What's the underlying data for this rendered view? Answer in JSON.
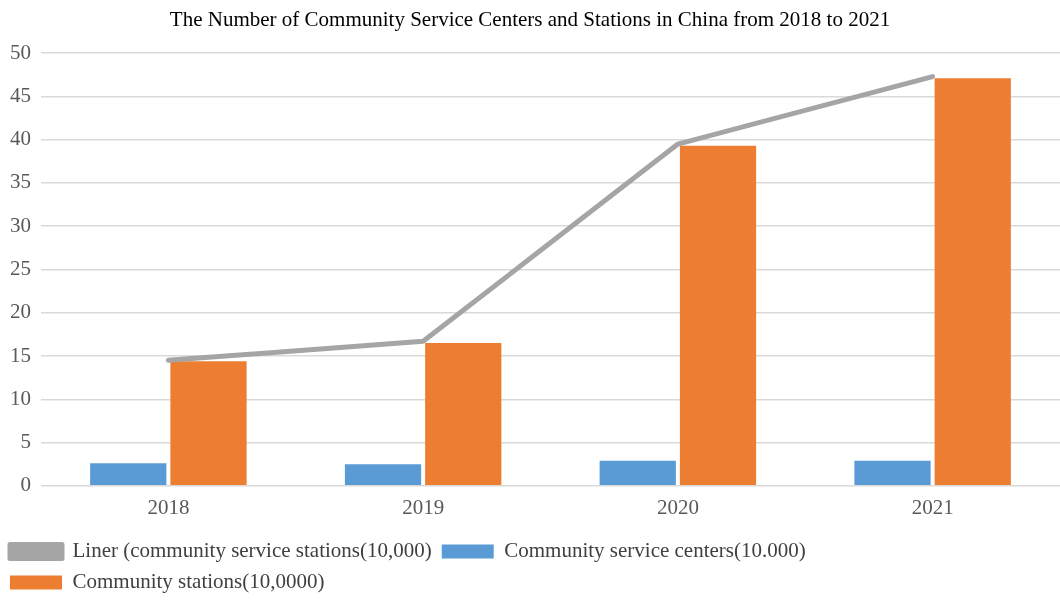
{
  "chart_data": {
    "type": "bar",
    "title": "The Number of Community Service Centers and Stations in China from 2018 to 2021",
    "categories": [
      "2018",
      "2019",
      "2020",
      "2021"
    ],
    "series": [
      {
        "name": "Community service centers(10.000)",
        "color": "#5b9bd5",
        "values": [
          2.6,
          2.5,
          2.9,
          2.9
        ]
      },
      {
        "name": "Community stations(10,0000)",
        "color": "#ed7d31",
        "values": [
          14.4,
          16.5,
          39.3,
          47.1
        ]
      },
      {
        "name": "Liner (community service stations(10,000)",
        "type": "line",
        "color": "#a5a5a5",
        "values": [
          14.5,
          16.7,
          39.5,
          47.3
        ]
      }
    ],
    "ylim": [
      0,
      50
    ],
    "yticks": [
      0,
      5,
      10,
      15,
      20,
      25,
      30,
      35,
      40,
      45,
      50
    ],
    "grid": "y",
    "legend": "bottom",
    "marker": "none"
  }
}
